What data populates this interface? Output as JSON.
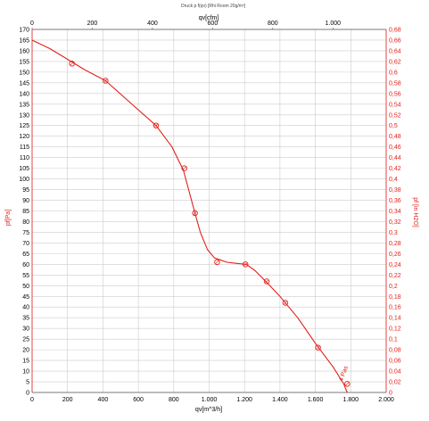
{
  "chart_data": {
    "type": "line",
    "title": "Druck p f(qv) [Rhi Room 20g/m³]",
    "xlabel": "qv[m^3/h]",
    "x2label": "qv[cfm]",
    "ylabel": "pf[Pa]",
    "y2label": "pf [in H2O]",
    "xlim": [
      0,
      2000
    ],
    "x2lim": [
      0,
      1177
    ],
    "ylim": [
      0,
      170
    ],
    "y2lim": [
      0,
      0.68
    ],
    "x_ticks": [
      "0",
      "200",
      "400",
      "600",
      "800",
      "1.000",
      "1.200",
      "1.400",
      "1.600",
      "1.800",
      "2.000"
    ],
    "x2_ticks": [
      "0",
      "200",
      "400",
      "600",
      "800",
      "1.000"
    ],
    "y_ticks": [
      "0",
      "5",
      "10",
      "15",
      "20",
      "25",
      "30",
      "35",
      "40",
      "45",
      "50",
      "55",
      "60",
      "65",
      "70",
      "75",
      "80",
      "85",
      "90",
      "95",
      "100",
      "105",
      "110",
      "115",
      "120",
      "125",
      "130",
      "135",
      "140",
      "145",
      "150",
      "155",
      "160",
      "165",
      "170"
    ],
    "y2_ticks": [
      "0",
      "0,02",
      "0,04",
      "0,06",
      "0,08",
      "0,1",
      "0,12",
      "0,14",
      "0,16",
      "0,18",
      "0,2",
      "0,22",
      "0,24",
      "0,26",
      "0,28",
      "0,3",
      "0,32",
      "0,34",
      "0,36",
      "0,38",
      "0,4",
      "0,42",
      "0,44",
      "0,46",
      "0,48",
      "0,5",
      "0,52",
      "0,54",
      "0,56",
      "0,58",
      "0,6",
      "0,62",
      "0,64",
      "0,66",
      "0,68"
    ],
    "grid": true,
    "series": [
      {
        "curve": [
          [
            0,
            165
          ],
          [
            100,
            161
          ],
          [
            220,
            155
          ],
          [
            300,
            151
          ],
          [
            415,
            146
          ],
          [
            550,
            136
          ],
          [
            700,
            125
          ],
          [
            790,
            115
          ],
          [
            855,
            104
          ],
          [
            900,
            90
          ],
          [
            920,
            84
          ],
          [
            950,
            75
          ],
          [
            990,
            67
          ],
          [
            1030,
            63
          ],
          [
            1100,
            61
          ],
          [
            1150,
            60.5
          ],
          [
            1210,
            60
          ],
          [
            1260,
            57
          ],
          [
            1320,
            52
          ],
          [
            1400,
            45
          ],
          [
            1500,
            35
          ],
          [
            1600,
            23
          ],
          [
            1700,
            12
          ],
          [
            1760,
            4
          ],
          [
            1780,
            0
          ]
        ],
        "markers": [
          [
            225,
            154
          ],
          [
            415,
            146
          ],
          [
            700,
            125
          ],
          [
            860,
            105
          ],
          [
            920,
            84
          ],
          [
            1045,
            61
          ],
          [
            1205,
            60
          ],
          [
            1325,
            52
          ],
          [
            1430,
            42
          ],
          [
            1615,
            21
          ],
          [
            1780,
            4
          ]
        ]
      }
    ],
    "annotation": "4 Pas",
    "colors": {
      "curve": "#e0201b",
      "axis_right": "#e0201b",
      "grid": "#cccccc"
    }
  }
}
